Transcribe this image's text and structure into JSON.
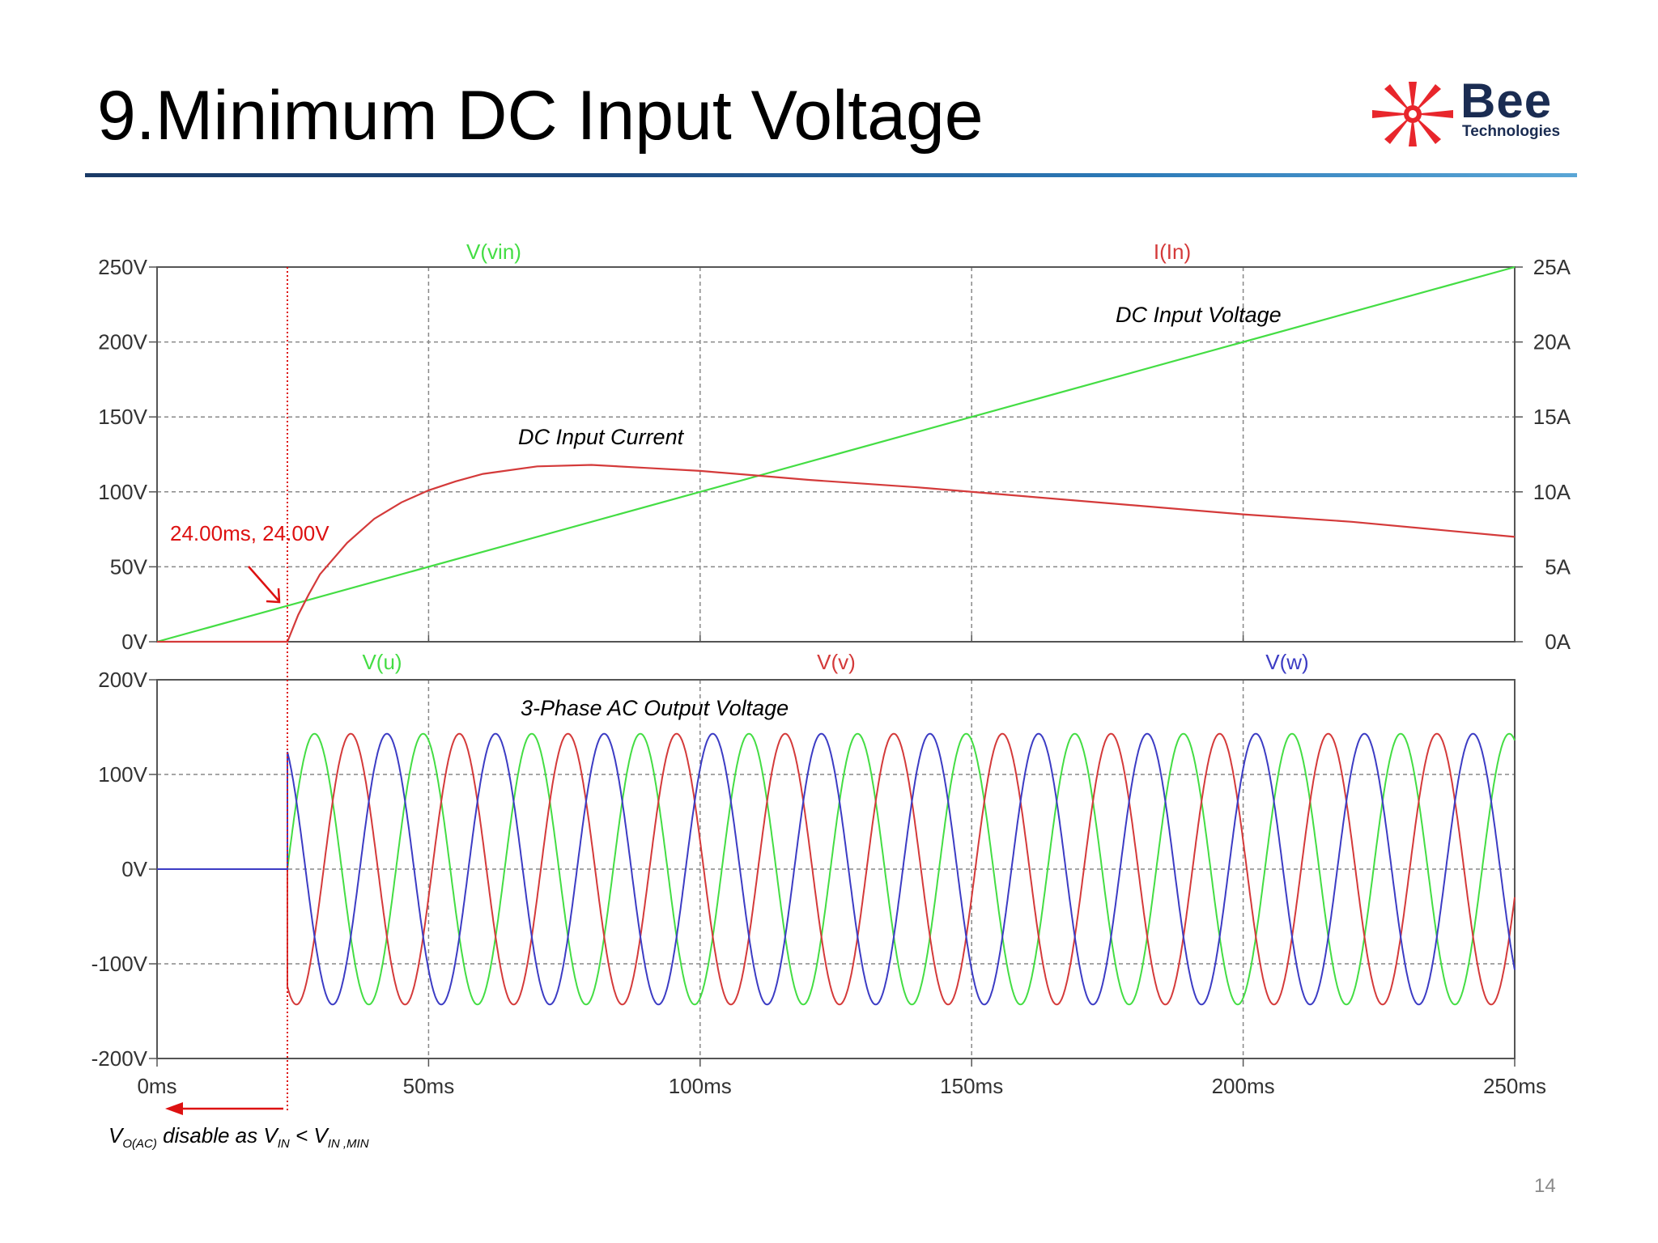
{
  "slide": {
    "title": "9.Minimum DC Input Voltage",
    "page_number": "14"
  },
  "logo": {
    "wordmark": "Bee",
    "subtitle": "Technologies",
    "icon": "red-star-burst-icon",
    "colors": {
      "star": "#e8262c",
      "text": "#1a2c52"
    }
  },
  "colors": {
    "vin": "#44dd44",
    "iln": "#d43a3a",
    "vu": "#44dd44",
    "vv": "#d43a3a",
    "vw": "#3c3cc4",
    "annotation": "#dd1111",
    "grid": "#888888"
  },
  "annotations": {
    "marker_label": "24.00ms, 24.00V",
    "dc_current_label": "DC Input Current",
    "dc_voltage_label": "DC Input Voltage",
    "ac_output_label": "3-Phase AC Output Voltage",
    "disable_note": {
      "v": "V",
      "v_sub": "O(AC)",
      "mid": " disable as V",
      "vin_sub": "IN",
      "lt": " < V",
      "vmin_sub": "IN ,MIN"
    }
  },
  "chart_data": [
    {
      "type": "line",
      "x_unit": "ms",
      "xlim": [
        0,
        250
      ],
      "x_ticks": [
        "0ms",
        "50ms",
        "100ms",
        "150ms",
        "200ms",
        "250ms"
      ],
      "grid": true,
      "y_left": {
        "lim": [
          0,
          250
        ],
        "ticks": [
          "0V",
          "50V",
          "100V",
          "150V",
          "200V",
          "250V"
        ]
      },
      "y_right": {
        "lim": [
          0,
          25
        ],
        "ticks": [
          "0A",
          "5A",
          "10A",
          "15A",
          "20A",
          "25A"
        ]
      },
      "series": [
        {
          "name": "V(vin)",
          "axis": "left",
          "color_key": "vin",
          "x": [
            0,
            250
          ],
          "values": [
            0,
            250
          ]
        },
        {
          "name": "I(In)",
          "axis": "right",
          "color_key": "iln",
          "x": [
            0,
            24,
            26,
            28,
            30,
            35,
            40,
            45,
            50,
            55,
            60,
            70,
            80,
            90,
            100,
            110,
            120,
            140,
            160,
            180,
            200,
            220,
            250
          ],
          "values": [
            0,
            0,
            1.8,
            3.2,
            4.5,
            6.6,
            8.2,
            9.3,
            10.1,
            10.7,
            11.2,
            11.7,
            11.8,
            11.6,
            11.4,
            11.1,
            10.8,
            10.3,
            9.7,
            9.1,
            8.5,
            8.0,
            7.0
          ]
        }
      ],
      "marker": {
        "x": 24,
        "y": 24
      }
    },
    {
      "type": "line",
      "x_unit": "ms",
      "xlim": [
        0,
        250
      ],
      "x_ticks": [
        "0ms",
        "50ms",
        "100ms",
        "150ms",
        "200ms",
        "250ms"
      ],
      "grid": true,
      "y": {
        "lim": [
          -200,
          200
        ],
        "ticks": [
          "-200V",
          "-100V",
          "0V",
          "100V",
          "200V"
        ]
      },
      "waveform": {
        "amplitude": 143,
        "period_ms": 20,
        "start_ms": 24
      },
      "series": [
        {
          "name": "V(u)",
          "color_key": "vu",
          "phase_deg": 0
        },
        {
          "name": "V(v)",
          "color_key": "vv",
          "phase_deg": -120
        },
        {
          "name": "V(w)",
          "color_key": "vw",
          "phase_deg": 120
        }
      ]
    }
  ]
}
